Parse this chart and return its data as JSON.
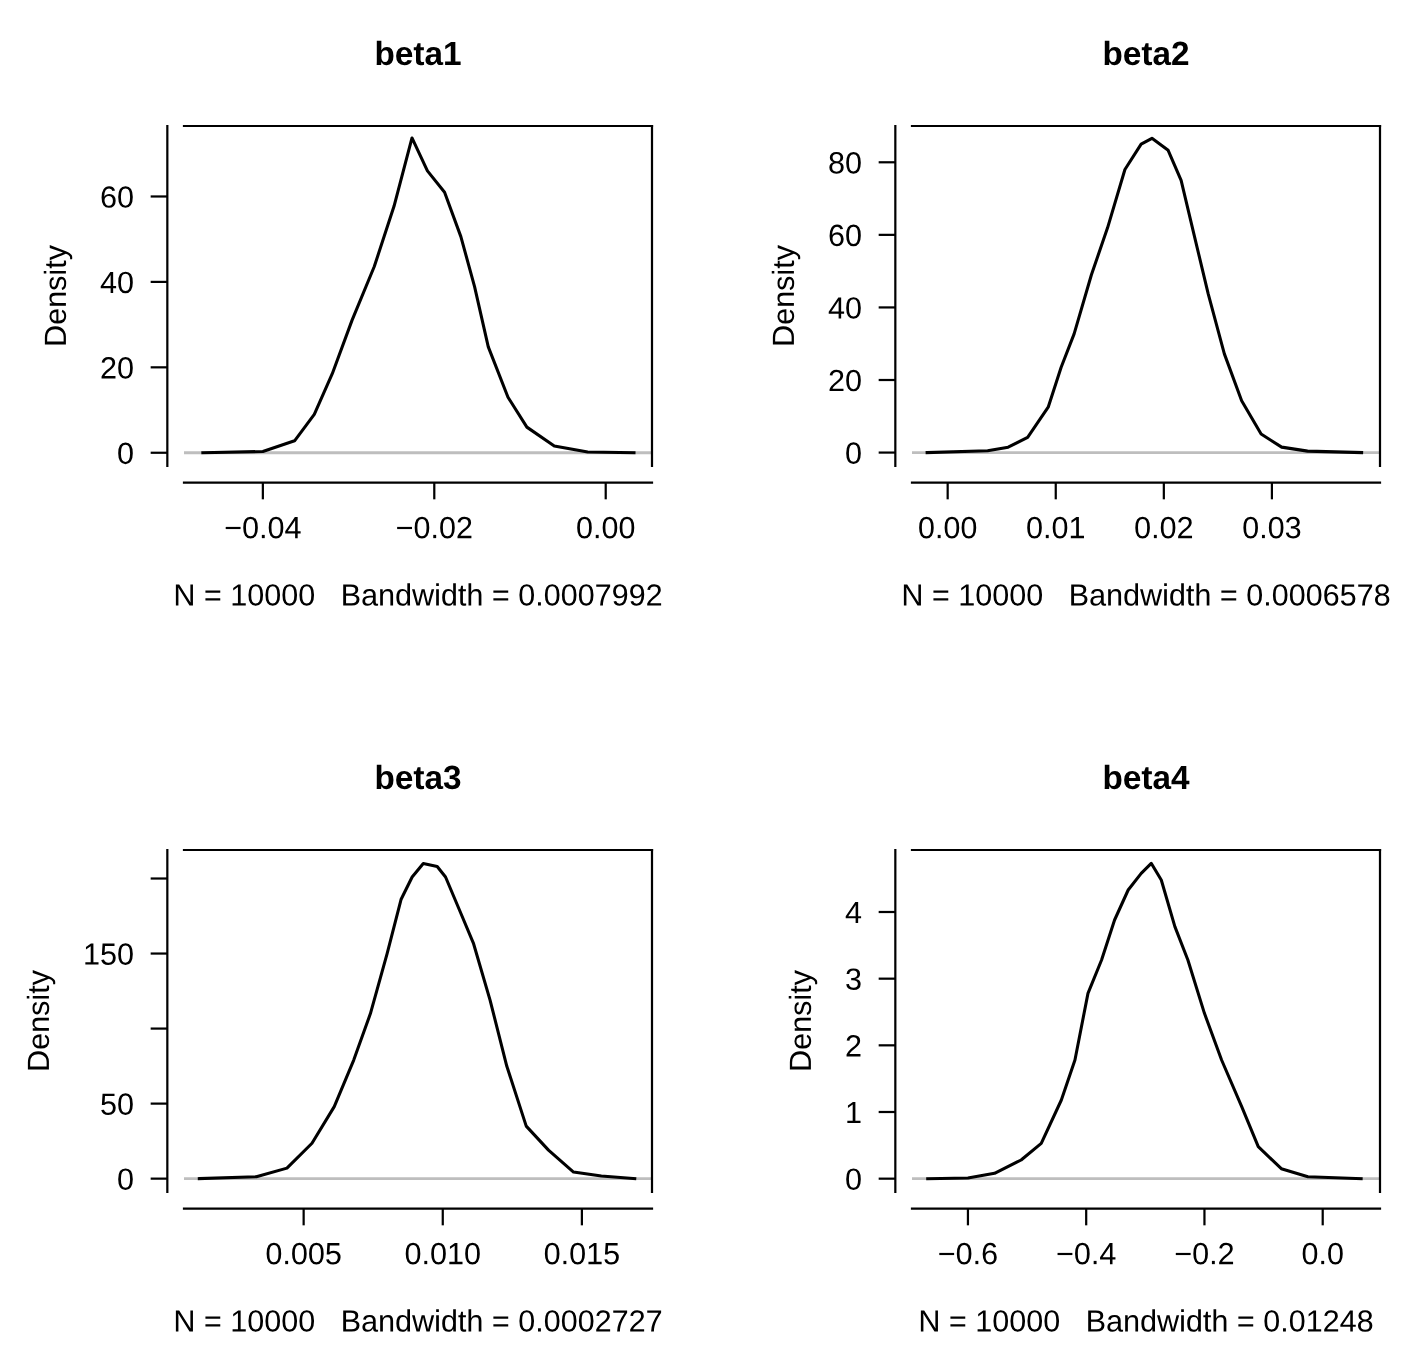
{
  "chart_data": [
    {
      "type": "line",
      "title": "beta1",
      "xlabel": "N = 10000   Bandwidth = 0.0007992",
      "ylabel": "Density",
      "xlim": [
        -0.0492,
        0.0054
      ],
      "ylim": [
        -3.1,
        76.5
      ],
      "xticks": [
        {
          "value": -0.04,
          "label": "−0.04"
        },
        {
          "value": -0.02,
          "label": "−0.02"
        },
        {
          "value": 0,
          "label": "0.00"
        }
      ],
      "yticks": [
        0,
        20,
        40,
        60
      ],
      "grid": false,
      "legend": false,
      "marker": "none",
      "line_style": "solid",
      "ref_lines": [
        {
          "axis": "y",
          "value": 0,
          "color": "#bebebe"
        }
      ],
      "series": [
        {
          "color": "#000000",
          "x": [
            -0.047,
            -0.04,
            -0.0363,
            -0.034,
            -0.0319,
            -0.0296,
            -0.027,
            -0.0247,
            -0.0226,
            -0.0208,
            -0.0188,
            -0.0169,
            -0.0153,
            -0.0137,
            -0.0114,
            -0.0092,
            -0.006,
            -0.0021,
            0.0033
          ],
          "values": [
            0,
            0.3,
            2.8,
            9,
            18.5,
            31,
            43.6,
            57.7,
            73.7,
            66,
            61,
            50.6,
            38.9,
            24.8,
            13,
            6,
            1.6,
            0.2,
            0
          ]
        }
      ]
    },
    {
      "type": "line",
      "title": "beta2",
      "xlabel": "N = 10000   Bandwidth = 0.0006578",
      "ylabel": "Density",
      "xlim": [
        -0.0033,
        0.04
      ],
      "ylim": [
        -3.7,
        90
      ],
      "xticks": [
        {
          "value": 0,
          "label": "0.00"
        },
        0.01,
        0.02,
        0.03
      ],
      "yticks": [
        0,
        20,
        40,
        60,
        80
      ],
      "grid": false,
      "legend": false,
      "marker": "none",
      "line_style": "solid",
      "ref_lines": [
        {
          "axis": "y",
          "value": 0,
          "color": "#bebebe"
        }
      ],
      "series": [
        {
          "color": "#000000",
          "x": [
            -0.0019,
            0.0037,
            0.0056,
            0.0074,
            0.0093,
            0.0105,
            0.0117,
            0.0133,
            0.0148,
            0.0164,
            0.0179,
            0.0189,
            0.0204,
            0.0216,
            0.0228,
            0.0241,
            0.0256,
            0.0272,
            0.029,
            0.0309,
            0.0333,
            0.0383
          ],
          "values": [
            0,
            0.5,
            1.5,
            4.2,
            12.5,
            23.5,
            32.7,
            49,
            62,
            78,
            85,
            86.6,
            83.3,
            75,
            60,
            43.8,
            27.2,
            14.3,
            5.1,
            1.5,
            0.4,
            0
          ]
        }
      ]
    },
    {
      "type": "line",
      "title": "beta3",
      "xlabel": "N = 10000   Bandwidth = 0.0002727",
      "ylabel": "Density",
      "xlim": [
        0.0007,
        0.01752
      ],
      "ylim": [
        -8.9,
        219
      ],
      "xticks": [
        0.005,
        {
          "value": 0.01,
          "label": "0.010"
        },
        0.015
      ],
      "yticks": [
        0,
        50,
        {
          "value": 100,
          "label": null
        },
        150,
        {
          "value": 200,
          "label": null
        }
      ],
      "grid": false,
      "legend": false,
      "marker": "none",
      "line_style": "solid",
      "ref_lines": [
        {
          "axis": "y",
          "value": 0,
          "color": "#bebebe"
        }
      ],
      "series": [
        {
          "color": "#000000",
          "x": [
            0.00125,
            0.0033,
            0.0044,
            0.0053,
            0.0061,
            0.0068,
            0.0074,
            0.008,
            0.0085,
            0.0089,
            0.0093,
            0.0098,
            0.0101,
            0.0106,
            0.0111,
            0.0117,
            0.0123,
            0.013,
            0.0138,
            0.0147,
            0.0157,
            0.0169
          ],
          "values": [
            0,
            1.3,
            7,
            23.6,
            48,
            79,
            110,
            150,
            186,
            201,
            210,
            208,
            201,
            179,
            157,
            119,
            75,
            35,
            19,
            4.4,
            1.8,
            0
          ]
        }
      ]
    },
    {
      "type": "line",
      "title": "beta4",
      "xlabel": "N = 10000   Bandwidth = 0.01248",
      "ylabel": "Density",
      "xlim": [
        -0.6946,
        0.0969
      ],
      "ylim": [
        -0.2,
        4.93
      ],
      "xticks": [
        {
          "value": -0.6,
          "label": "−0.6"
        },
        {
          "value": -0.4,
          "label": "−0.4"
        },
        {
          "value": -0.2,
          "label": "−0.2"
        },
        {
          "value": 0,
          "label": "0.0"
        }
      ],
      "yticks": [
        0,
        1,
        2,
        3,
        4
      ],
      "grid": false,
      "legend": false,
      "marker": "none",
      "line_style": "solid",
      "ref_lines": [
        {
          "axis": "y",
          "value": 0,
          "color": "#bebebe"
        }
      ],
      "series": [
        {
          "color": "#000000",
          "x": [
            -0.668,
            -0.6,
            -0.555,
            -0.51,
            -0.476,
            -0.442,
            -0.419,
            -0.397,
            -0.374,
            -0.352,
            -0.329,
            -0.307,
            -0.29,
            -0.273,
            -0.25,
            -0.228,
            -0.2,
            -0.171,
            -0.137,
            -0.109,
            -0.07,
            -0.025,
            0.065
          ],
          "values": [
            0,
            0.01,
            0.08,
            0.28,
            0.53,
            1.18,
            1.78,
            2.78,
            3.28,
            3.88,
            4.33,
            4.58,
            4.73,
            4.48,
            3.78,
            3.28,
            2.48,
            1.78,
            1.08,
            0.48,
            0.15,
            0.03,
            0
          ]
        }
      ]
    }
  ]
}
